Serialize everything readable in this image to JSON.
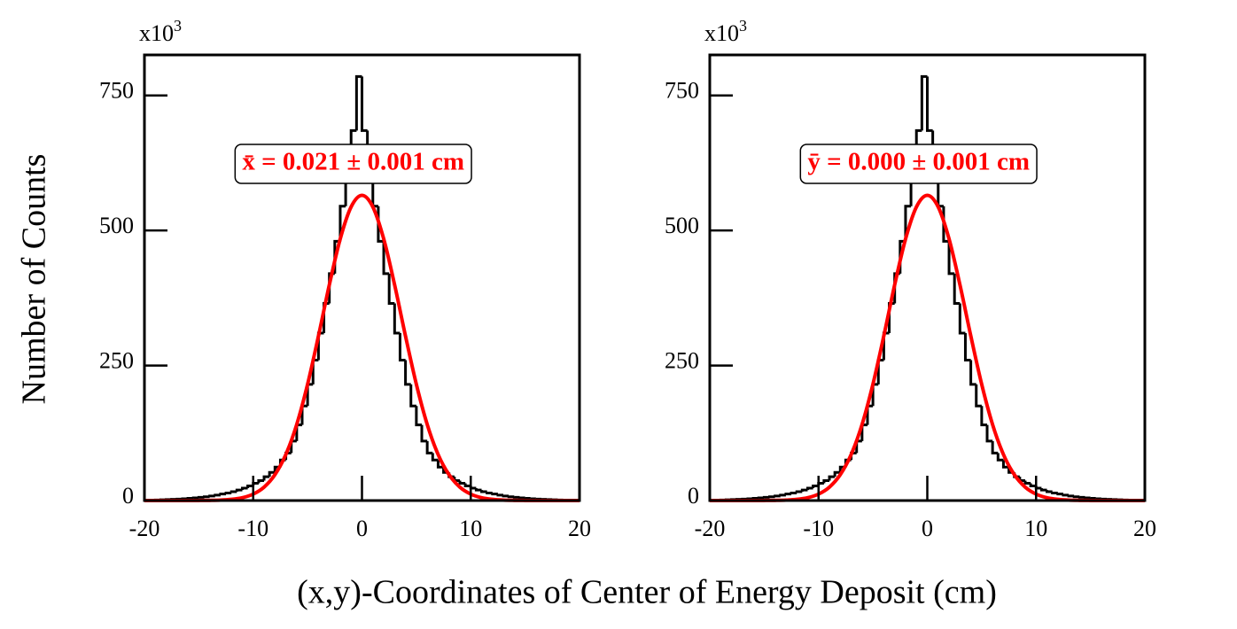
{
  "xlabel": "(x,y)-Coordinates of Center of Energy Deposit (cm)",
  "ylabel": "Number of Counts",
  "chart_data": [
    {
      "type": "histogram",
      "color": "#000000",
      "annotation": "x̄ = 0.021 ± 0.001 cm",
      "y_multiplier": "x10",
      "y_exponent": 3,
      "xlim": [
        -20,
        20
      ],
      "xticks": [
        -20,
        -10,
        0,
        10,
        20
      ],
      "ylim": [
        0,
        825
      ],
      "yticks": [
        0,
        250,
        500,
        750
      ],
      "bins": [
        -20,
        -19.5,
        -19,
        -18.5,
        -18,
        -17.5,
        -17,
        -16.5,
        -16,
        -15.5,
        -15,
        -14.5,
        -14,
        -13.5,
        -13,
        -12.5,
        -12,
        -11.5,
        -11,
        -10.5,
        -10,
        -9.5,
        -9,
        -8.5,
        -8,
        -7.5,
        -7,
        -6.5,
        -6,
        -5.5,
        -5,
        -4.5,
        -4,
        -3.5,
        -3,
        -2.5,
        -2,
        -1.5,
        -1,
        -0.5,
        0,
        0.5,
        1,
        1.5,
        2,
        2.5,
        3,
        3.5,
        4,
        4.5,
        5,
        5.5,
        6,
        6.5,
        7,
        7.5,
        8,
        8.5,
        9,
        9.5,
        10,
        10.5,
        11,
        11.5,
        12,
        12.5,
        13,
        13.5,
        14,
        14.5,
        15,
        15.5,
        16,
        16.5,
        17,
        17.5,
        18,
        18.5,
        19,
        19.5,
        20
      ],
      "values": [
        0.6,
        0.8,
        1.1,
        1.4,
        1.8,
        2.2,
        2.7,
        3.3,
        4,
        5,
        6,
        7,
        8.5,
        10,
        12,
        14,
        16.5,
        19.5,
        23,
        27,
        32,
        37,
        44,
        52,
        62,
        75,
        88,
        110,
        140,
        175,
        215,
        260,
        310,
        365,
        420,
        480,
        545,
        600,
        685,
        785,
        685,
        600,
        545,
        480,
        420,
        365,
        310,
        260,
        215,
        175,
        140,
        110,
        88,
        75,
        62,
        52,
        44,
        37,
        32,
        27,
        23,
        19.5,
        16.5,
        14,
        12,
        10,
        8.5,
        7,
        6,
        5,
        4,
        3.3,
        2.7,
        2.2,
        1.8,
        1.4,
        1.1,
        0.8,
        0.6,
        0.4
      ],
      "fit": {
        "color": "#ff0000",
        "x": [
          -20,
          -19,
          -18,
          -17,
          -16,
          -15,
          -14,
          -13,
          -12,
          -11,
          -10,
          -9,
          -8,
          -7,
          -6,
          -5,
          -4,
          -3,
          -2,
          -1,
          0,
          1,
          2,
          3,
          4,
          5,
          6,
          7,
          8,
          9,
          10,
          11,
          12,
          13,
          14,
          15,
          16,
          17,
          18,
          19,
          20
        ],
        "values": [
          0,
          0,
          0,
          0,
          0,
          0.1,
          0.3,
          0.8,
          2.2,
          5.3,
          11.9,
          24.8,
          47.9,
          85.3,
          140.8,
          215.3,
          304.7,
          399.4,
          484.3,
          543.6,
          565,
          543.6,
          484.3,
          399.4,
          304.7,
          215.3,
          140.8,
          85.3,
          47.9,
          24.8,
          11.9,
          5.3,
          2.2,
          0.8,
          0.3,
          0.1,
          0,
          0,
          0,
          0,
          0
        ]
      }
    },
    {
      "type": "histogram",
      "color": "#000000",
      "annotation": "ȳ = 0.000 ± 0.001 cm",
      "y_multiplier": "x10",
      "y_exponent": 3,
      "xlim": [
        -20,
        20
      ],
      "xticks": [
        -20,
        -10,
        0,
        10,
        20
      ],
      "ylim": [
        0,
        825
      ],
      "yticks": [
        0,
        250,
        500,
        750
      ],
      "bins": [
        -20,
        -19.5,
        -19,
        -18.5,
        -18,
        -17.5,
        -17,
        -16.5,
        -16,
        -15.5,
        -15,
        -14.5,
        -14,
        -13.5,
        -13,
        -12.5,
        -12,
        -11.5,
        -11,
        -10.5,
        -10,
        -9.5,
        -9,
        -8.5,
        -8,
        -7.5,
        -7,
        -6.5,
        -6,
        -5.5,
        -5,
        -4.5,
        -4,
        -3.5,
        -3,
        -2.5,
        -2,
        -1.5,
        -1,
        -0.5,
        0,
        0.5,
        1,
        1.5,
        2,
        2.5,
        3,
        3.5,
        4,
        4.5,
        5,
        5.5,
        6,
        6.5,
        7,
        7.5,
        8,
        8.5,
        9,
        9.5,
        10,
        10.5,
        11,
        11.5,
        12,
        12.5,
        13,
        13.5,
        14,
        14.5,
        15,
        15.5,
        16,
        16.5,
        17,
        17.5,
        18,
        18.5,
        19,
        19.5,
        20
      ],
      "values": [
        0.6,
        0.8,
        1.1,
        1.4,
        1.8,
        2.2,
        2.7,
        3.3,
        4,
        5,
        6,
        7,
        8.5,
        10,
        12,
        14,
        16.5,
        19.5,
        23,
        27,
        32,
        37,
        44,
        52,
        62,
        75,
        88,
        110,
        140,
        175,
        215,
        260,
        310,
        365,
        420,
        480,
        545,
        600,
        685,
        785,
        685,
        600,
        545,
        480,
        420,
        365,
        310,
        260,
        215,
        175,
        140,
        110,
        88,
        75,
        62,
        52,
        44,
        37,
        32,
        27,
        23,
        19.5,
        16.5,
        14,
        12,
        10,
        8.5,
        7,
        6,
        5,
        4,
        3.3,
        2.7,
        2.2,
        1.8,
        1.4,
        1.1,
        0.8,
        0.6,
        0.4
      ],
      "fit": {
        "color": "#ff0000",
        "x": [
          -20,
          -19,
          -18,
          -17,
          -16,
          -15,
          -14,
          -13,
          -12,
          -11,
          -10,
          -9,
          -8,
          -7,
          -6,
          -5,
          -4,
          -3,
          -2,
          -1,
          0,
          1,
          2,
          3,
          4,
          5,
          6,
          7,
          8,
          9,
          10,
          11,
          12,
          13,
          14,
          15,
          16,
          17,
          18,
          19,
          20
        ],
        "values": [
          0,
          0,
          0,
          0,
          0,
          0.1,
          0.3,
          0.8,
          2.2,
          5.3,
          11.9,
          24.8,
          47.9,
          85.3,
          140.8,
          215.3,
          304.7,
          399.4,
          484.3,
          543.6,
          565,
          543.6,
          484.3,
          399.4,
          304.7,
          215.3,
          140.8,
          85.3,
          47.9,
          24.8,
          11.9,
          5.3,
          2.2,
          0.8,
          0.3,
          0.1,
          0,
          0,
          0,
          0,
          0
        ]
      }
    }
  ]
}
